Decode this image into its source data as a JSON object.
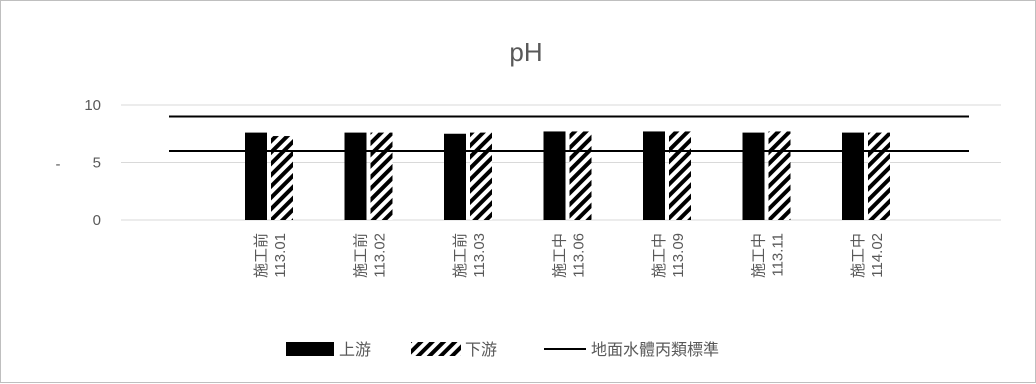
{
  "chart_data": {
    "type": "bar",
    "title": "pH",
    "ylabel": "-",
    "ylim": [
      0,
      10
    ],
    "yticks": [
      0,
      5,
      10
    ],
    "grid": true,
    "legend_position": "bottom",
    "categories": [
      {
        "phase": "施工前",
        "date": "113.01"
      },
      {
        "phase": "施工前",
        "date": "113.02"
      },
      {
        "phase": "施工前",
        "date": "113.03"
      },
      {
        "phase": "施工中",
        "date": "113.06"
      },
      {
        "phase": "施工中",
        "date": "113.09"
      },
      {
        "phase": "施工中",
        "date": "113.11"
      },
      {
        "phase": "施工中",
        "date": "114.02"
      }
    ],
    "series": [
      {
        "name": "上游",
        "values": [
          7.6,
          7.6,
          7.5,
          7.7,
          7.7,
          7.6,
          7.6
        ],
        "color": "#000000",
        "pattern": "solid"
      },
      {
        "name": "下游",
        "values": [
          7.3,
          7.6,
          7.6,
          7.7,
          7.7,
          7.7,
          7.6
        ],
        "color": "#000000",
        "pattern": "diagonal-hatch"
      }
    ],
    "reference_lines": {
      "name": "地面水體丙類標準",
      "values": [
        9,
        6
      ],
      "color": "#000000"
    }
  }
}
